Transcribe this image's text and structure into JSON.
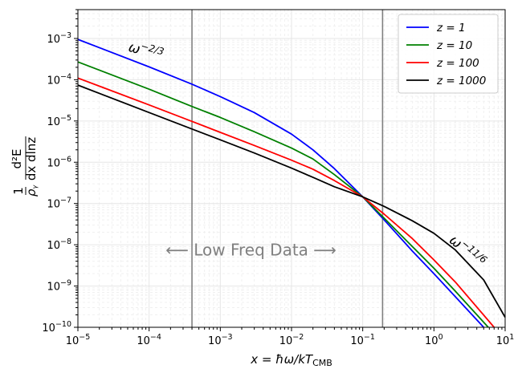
{
  "chart_data": {
    "type": "line",
    "xscale": "log",
    "yscale": "log",
    "xlim": [
      1e-05,
      10
    ],
    "ylim": [
      1e-10,
      0.005
    ],
    "grid": true,
    "legend_position": "top-right",
    "xlabel": {
      "main": "x = ħω/kT",
      "sub": "CMB"
    },
    "ylabel": {
      "pre": "1",
      "den": "ρ",
      "den_sub": "γ",
      "den_post": " dx dlnz",
      "num": "d²E"
    },
    "x_ticks": [
      {
        "value": 1e-05,
        "base": "10",
        "exp": "−5"
      },
      {
        "value": 0.0001,
        "base": "10",
        "exp": "−4"
      },
      {
        "value": 0.001,
        "base": "10",
        "exp": "−3"
      },
      {
        "value": 0.01,
        "base": "10",
        "exp": "−2"
      },
      {
        "value": 0.1,
        "base": "10",
        "exp": "−1"
      },
      {
        "value": 1,
        "base": "10",
        "exp": "0"
      },
      {
        "value": 10,
        "base": "10",
        "exp": "1"
      }
    ],
    "y_ticks": [
      {
        "value": 1e-10,
        "base": "10",
        "exp": "−10"
      },
      {
        "value": 1e-09,
        "base": "10",
        "exp": "−9"
      },
      {
        "value": 1e-08,
        "base": "10",
        "exp": "−8"
      },
      {
        "value": 1e-07,
        "base": "10",
        "exp": "−7"
      },
      {
        "value": 1e-06,
        "base": "10",
        "exp": "−6"
      },
      {
        "value": 1e-05,
        "base": "10",
        "exp": "−5"
      },
      {
        "value": 0.0001,
        "base": "10",
        "exp": "−4"
      },
      {
        "value": 0.001,
        "base": "10",
        "exp": "−3"
      }
    ],
    "series": [
      {
        "name": "z = 1",
        "color": "#0000ff",
        "x": [
          1e-05,
          0.0001,
          0.0004,
          0.001,
          0.003,
          0.01,
          0.02,
          0.04,
          0.1,
          0.2,
          0.5,
          1,
          2,
          5
        ],
        "y": [
          0.00095,
          0.000205,
          7.8e-05,
          3.9e-05,
          1.6e-05,
          4.8e-06,
          2e-06,
          7e-07,
          1.45e-07,
          4e-08,
          7e-09,
          2e-09,
          5.5e-10,
          1e-10
        ]
      },
      {
        "name": "z = 10",
        "color": "#008000",
        "x": [
          1e-05,
          0.0001,
          0.0004,
          0.001,
          0.003,
          0.01,
          0.02,
          0.04,
          0.1,
          0.2,
          0.5,
          1,
          2,
          5.8
        ],
        "y": [
          0.00027,
          5.9e-05,
          2.25e-05,
          1.22e-05,
          5.5e-06,
          2.2e-06,
          1.2e-06,
          5e-07,
          1.45e-07,
          4.4e-08,
          9e-09,
          2.7e-09,
          7.5e-10,
          1e-10
        ]
      },
      {
        "name": "z = 100",
        "color": "#ff0000",
        "x": [
          1e-05,
          0.0001,
          0.0004,
          0.001,
          0.003,
          0.01,
          0.02,
          0.04,
          0.1,
          0.2,
          0.5,
          1,
          2,
          7
        ],
        "y": [
          0.00011,
          2.45e-05,
          9.8e-06,
          5.3e-06,
          2.55e-06,
          1.12e-06,
          6.8e-07,
          3.6e-07,
          1.45e-07,
          5.5e-08,
          1.4e-08,
          4.3e-09,
          1.25e-09,
          1e-10
        ]
      },
      {
        "name": "z = 1000",
        "color": "#000000",
        "x": [
          1e-05,
          0.0001,
          0.0004,
          0.001,
          0.003,
          0.01,
          0.02,
          0.04,
          0.1,
          0.2,
          0.5,
          1,
          2,
          5,
          10
        ],
        "y": [
          7.4e-05,
          1.6e-05,
          6.4e-06,
          3.5e-06,
          1.68e-06,
          7.2e-07,
          4.3e-07,
          2.55e-07,
          1.45e-07,
          8.5e-08,
          3.8e-08,
          1.9e-08,
          7.5e-09,
          1.4e-09,
          1.75e-10
        ]
      }
    ],
    "vlines": [
      {
        "x": 0.0004,
        "color": "#808080"
      },
      {
        "x": 0.19,
        "color": "#808080"
      }
    ],
    "annotations": [
      {
        "kind": "power",
        "base": "ω",
        "exp": "−2/3",
        "x": 5e-05,
        "y": 0.0005,
        "rotate": 16,
        "size": 17
      },
      {
        "kind": "power",
        "base": "ω",
        "exp": "−11/6",
        "x": 1.6,
        "y": 1.2e-08,
        "rotate": 40,
        "size": 17
      },
      {
        "kind": "band",
        "text": "⟵ Low Freq Data ⟶",
        "x": 0.0027,
        "y": 5.5e-09
      }
    ]
  }
}
